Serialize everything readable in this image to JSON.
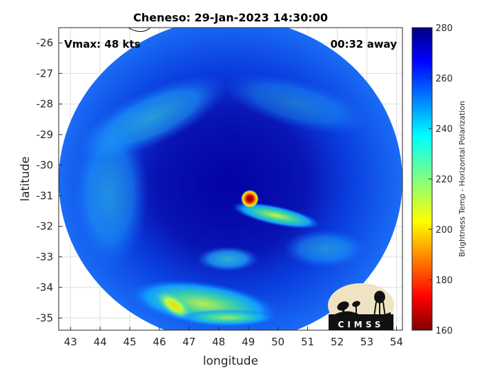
{
  "chart_data": {
    "type": "heatmap",
    "title": "Cheneso: 29-Jan-2023 14:30:00",
    "xlabel": "longitude",
    "ylabel": "latitude",
    "xlim": [
      42.6,
      54.2
    ],
    "ylim": [
      -35.4,
      -25.5
    ],
    "x_ticks": [
      "43",
      "44",
      "45",
      "46",
      "47",
      "48",
      "49",
      "50",
      "51",
      "52",
      "53",
      "54"
    ],
    "y_ticks": [
      "-26",
      "-27",
      "-28",
      "-29",
      "-30",
      "-31",
      "-32",
      "-33",
      "-34",
      "-35"
    ],
    "grid": true,
    "annotations": {
      "vmax": "Vmax: 48 kts",
      "time_offset": "00:32 away"
    },
    "colorbar": {
      "label": "Brightness Temp - Horizontal Polarization",
      "min": 160,
      "max": 280,
      "ticks": [
        "280",
        "260",
        "240",
        "220",
        "200",
        "180",
        "160"
      ],
      "colormap": "jet"
    },
    "swath": {
      "center_lon": 48.4,
      "center_lat": -30.5,
      "radius_deg_x": 5.8,
      "radius_deg_y": 5.3
    },
    "features": [
      {
        "name": "eye",
        "lon": 49.05,
        "lat": -31.1,
        "value": 170
      },
      {
        "name": "rainband east",
        "lon": 50.4,
        "lat": -31.75,
        "value": 225
      },
      {
        "name": "rainband south",
        "lon": 47.2,
        "lat": -34.3,
        "value": 225
      },
      {
        "name": "rainband southwest",
        "lon": 46.6,
        "lat": -34.7,
        "value": 200
      }
    ]
  },
  "logo": {
    "text": "CIMSS"
  }
}
